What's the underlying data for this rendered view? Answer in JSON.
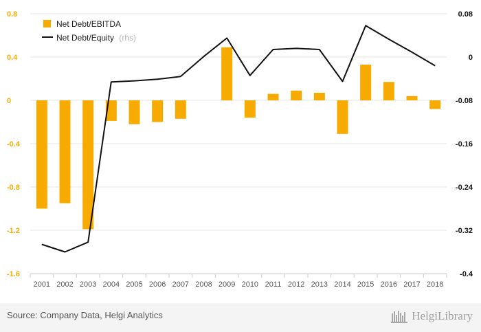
{
  "chart_data": {
    "type": "bar+line",
    "categories": [
      "2001",
      "2002",
      "2003",
      "2004",
      "2005",
      "2006",
      "2007",
      "2008",
      "2009",
      "2010",
      "2011",
      "2012",
      "2013",
      "2014",
      "2015",
      "2016",
      "2017",
      "2018"
    ],
    "series": [
      {
        "name": "Net Debt/EBITDA",
        "type": "bar",
        "axis": "left",
        "color": "#f7ab00",
        "values": [
          -1.0,
          -0.95,
          -1.19,
          -0.19,
          -0.22,
          -0.2,
          -0.17,
          null,
          0.49,
          -0.16,
          0.06,
          0.09,
          0.07,
          -0.31,
          0.33,
          0.17,
          0.04,
          -0.08
        ]
      },
      {
        "name": "Net Debt/Equity",
        "name_suffix": "(rhs)",
        "type": "line",
        "axis": "right",
        "color": "#111111",
        "values": [
          -0.346,
          -0.36,
          -0.342,
          -0.046,
          -0.044,
          -0.041,
          -0.036,
          0.001,
          0.035,
          -0.034,
          0.014,
          0.016,
          0.014,
          -0.045,
          0.058,
          0.033,
          0.009,
          -0.016
        ]
      }
    ],
    "y_left": {
      "ylim": [
        -1.6,
        0.8
      ],
      "ticks": [
        -1.6,
        -1.2,
        -0.8,
        -0.4,
        0,
        0.4,
        0.8
      ],
      "tick_labels": [
        "-1.6",
        "-1.2",
        "-0.8",
        "-0.4",
        "0",
        "0.4",
        "0.8"
      ],
      "color": "#f7ab00"
    },
    "y_right": {
      "ylim": [
        -0.4,
        0.08
      ],
      "ticks": [
        -0.4,
        -0.32,
        -0.24,
        -0.16,
        -0.08,
        0,
        0.08
      ],
      "tick_labels": [
        "-0.4",
        "-0.32",
        "-0.24",
        "-0.16",
        "-0.08",
        "0",
        "0.08"
      ],
      "color": "#111111"
    },
    "grid": true,
    "legend_position": "top-left",
    "title": "",
    "xlabel": "",
    "ylabel": ""
  },
  "footer": {
    "source": "Source: Company Data, Helgi Analytics",
    "logo_text": "HelgiLibrary"
  },
  "colors": {
    "bar": "#f7ab00",
    "line": "#111111",
    "grid": "#e4e4e4",
    "footer_bg": "#f4f4f4"
  }
}
